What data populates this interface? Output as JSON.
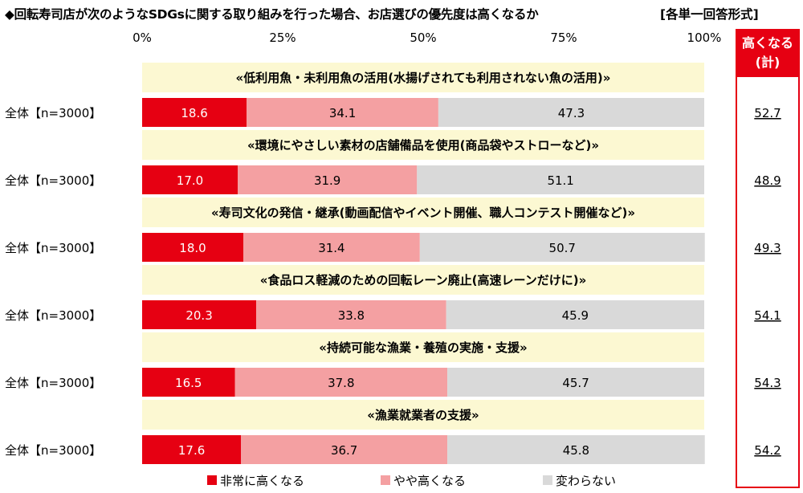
{
  "title": "◆回転寿司店が次のようなSDGsに関する取り組みを行った場合、お店選びの優先度は高くなるか",
  "question_type": "[各単一回答形式]",
  "total_header": {
    "line1": "高くなる",
    "line2": "(計)"
  },
  "colors": {
    "high": "#e60012",
    "mid": "#f4a0a2",
    "none": "#d9d9d9",
    "banner": "#fcf8d2",
    "total_border": "#e60012"
  },
  "chart_data": {
    "type": "bar",
    "stacked": true,
    "orientation": "horizontal",
    "xlim": [
      0,
      100
    ],
    "x_ticks": [
      "0%",
      "25%",
      "50%",
      "75%",
      "100%"
    ],
    "legend_position": "bottom",
    "series": [
      {
        "name": "非常に高くなる",
        "color": "#e60012"
      },
      {
        "name": "やや高くなる",
        "color": "#f4a0a2"
      },
      {
        "name": "変わらない",
        "color": "#d9d9d9"
      }
    ],
    "items": [
      {
        "heading": "«低利用魚・未利用魚の活用(水揚げされても利用されない魚の活用)»",
        "row_label": "全体【n=3000】",
        "values": [
          18.6,
          34.1,
          47.3
        ],
        "total": "52.7"
      },
      {
        "heading": "«環境にやさしい素材の店舗備品を使用(商品袋やストローなど)»",
        "row_label": "全体【n=3000】",
        "values": [
          17.0,
          31.9,
          51.1
        ],
        "total": "48.9"
      },
      {
        "heading": "«寿司文化の発信・継承(動画配信やイベント開催、職人コンテスト開催など)»",
        "row_label": "全体【n=3000】",
        "values": [
          18.0,
          31.4,
          50.7
        ],
        "total": "49.3"
      },
      {
        "heading": "«食品ロス軽減のための回転レーン廃止(高速レーンだけに)»",
        "row_label": "全体【n=3000】",
        "values": [
          20.3,
          33.8,
          45.9
        ],
        "total": "54.1"
      },
      {
        "heading": "«持続可能な漁業・養殖の実施・支援»",
        "row_label": "全体【n=3000】",
        "values": [
          16.5,
          37.8,
          45.7
        ],
        "total": "54.3"
      },
      {
        "heading": "«漁業就業者の支援»",
        "row_label": "全体【n=3000】",
        "values": [
          17.6,
          36.7,
          45.8
        ],
        "total": "54.2"
      }
    ]
  }
}
